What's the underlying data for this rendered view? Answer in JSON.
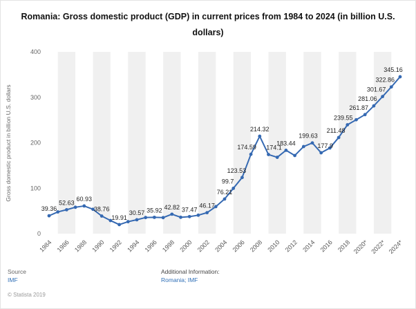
{
  "title": "Romania: Gross domestic product (GDP) in current prices from 1984 to 2024 (in billion U.S. dollars)",
  "footer": {
    "source_label": "Source",
    "source_value": "IMF",
    "copyright": "© Statista 2019",
    "additional_label": "Additional Information:",
    "additional_value": "Romania; IMF"
  },
  "colors": {
    "line": "#3569b2",
    "band": "#f0f0f0",
    "link": "#2f6fb7"
  },
  "chart_data": {
    "type": "line",
    "title": "Romania: Gross domestic product (GDP) in current prices from 1984 to 2024 (in billion U.S. dollars)",
    "xlabel": "",
    "ylabel": "Gross domestic product in billion U.S. dollars",
    "ylim": [
      0,
      400
    ],
    "y_ticks": [
      0,
      100,
      200,
      300,
      400
    ],
    "x_range": [
      1984,
      2024
    ],
    "x_tick_step": 2,
    "x_tick_labels": [
      "1984",
      "1986",
      "1988",
      "1990",
      "1992",
      "1994",
      "1996",
      "1998",
      "2000",
      "2002",
      "2004",
      "2006",
      "2008",
      "2010",
      "2012",
      "2014",
      "2016",
      "2018",
      "2020*",
      "2022*",
      "2024*"
    ],
    "grid": "alternating-vertical-bands",
    "legend": "none",
    "series": [
      {
        "name": "GDP in current prices (billion U.S. dollars)",
        "x": [
          1984,
          1985,
          1986,
          1987,
          1988,
          1989,
          1990,
          1991,
          1992,
          1993,
          1994,
          1995,
          1996,
          1997,
          1998,
          1999,
          2000,
          2001,
          2002,
          2003,
          2004,
          2005,
          2006,
          2007,
          2008,
          2009,
          2010,
          2011,
          2012,
          2013,
          2014,
          2015,
          2016,
          2017,
          2018,
          2019,
          2020,
          2021,
          2022,
          2023,
          2024
        ],
        "values": [
          39.36,
          47.84,
          52.63,
          58.07,
          60.93,
          53.65,
          38.76,
          28.85,
          19.91,
          26.36,
          30.57,
          35.48,
          35.92,
          35.29,
          42.82,
          35.99,
          37.47,
          40.58,
          46.17,
          59.47,
          76.21,
          99.7,
          123.53,
          174.59,
          214.32,
          174.1,
          168.0,
          183.44,
          171.9,
          191.6,
          199.63,
          177.9,
          188.5,
          211.48,
          239.55,
          250.6,
          261.87,
          281.06,
          301.67,
          322.86,
          345.16
        ]
      }
    ],
    "data_labels": [
      {
        "x": 1984,
        "text": "39.36"
      },
      {
        "x": 1986,
        "text": "52.63"
      },
      {
        "x": 1988,
        "text": "60.93"
      },
      {
        "x": 1990,
        "text": "38.76"
      },
      {
        "x": 1992,
        "text": "19.91"
      },
      {
        "x": 1994,
        "text": "30.57"
      },
      {
        "x": 1996,
        "text": "35.92"
      },
      {
        "x": 1998,
        "text": "42.82"
      },
      {
        "x": 2000,
        "text": "37.47"
      },
      {
        "x": 2002,
        "text": "46.17"
      },
      {
        "x": 2004,
        "text": "76.21"
      },
      {
        "x": 2005,
        "text": "99.7",
        "dx": -8
      },
      {
        "x": 2006,
        "text": "123.53",
        "dx": -8
      },
      {
        "x": 2007,
        "text": "174.59",
        "dx": -6
      },
      {
        "x": 2008,
        "text": "214.32"
      },
      {
        "x": 2009,
        "text": "174.1",
        "dx": 8
      },
      {
        "x": 2011,
        "text": "183.44"
      },
      {
        "x": 2014,
        "text": "199.63",
        "dx": -6
      },
      {
        "x": 2015,
        "text": "177.9",
        "dx": 6
      },
      {
        "x": 2017,
        "text": "211.48",
        "dx": -4
      },
      {
        "x": 2018,
        "text": "239.55",
        "dx": -6
      },
      {
        "x": 2020,
        "text": "261.87",
        "dx": -9
      },
      {
        "x": 2021,
        "text": "281.06",
        "dx": -9
      },
      {
        "x": 2022,
        "text": "301.67",
        "dx": -9
      },
      {
        "x": 2023,
        "text": "322.86",
        "dx": -9
      },
      {
        "x": 2024,
        "text": "345.16",
        "dx": -10
      }
    ]
  }
}
